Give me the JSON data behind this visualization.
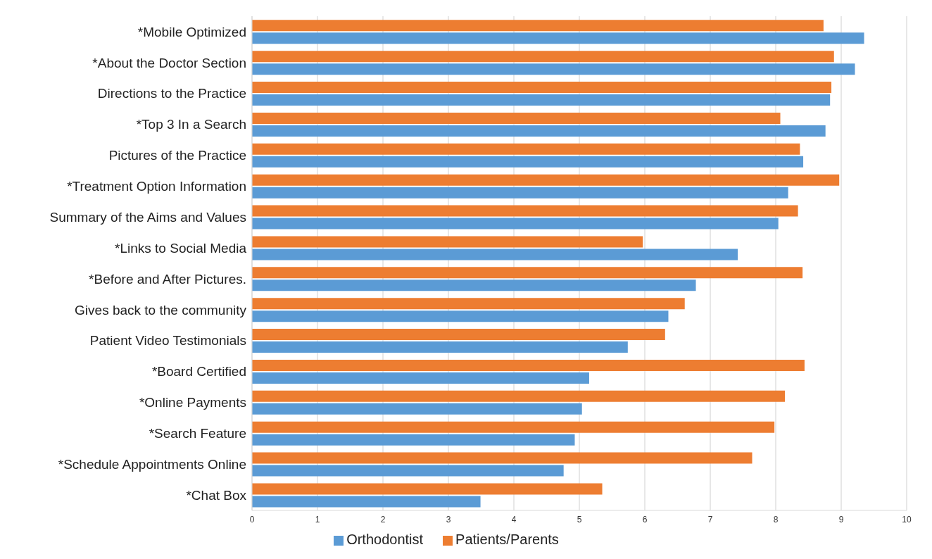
{
  "chart_data": {
    "type": "bar",
    "orientation": "horizontal",
    "categories": [
      "*Mobile Optimized",
      "*About the Doctor Section",
      "Directions to the Practice",
      "*Top 3 In a Search",
      "Pictures of the Practice",
      "*Treatment Option Information",
      "Summary of the Aims and Values",
      "*Links to Social Media",
      "*Before and After Pictures.",
      "Gives back to the community",
      "Patient Video Testimonials",
      "*Board Certified",
      "*Online Payments",
      "*Search Feature",
      "*Schedule Appointments Online",
      "*Chat Box"
    ],
    "series": [
      {
        "name": "Patients/Parents",
        "color": "#ed7d31",
        "values": [
          8.73,
          8.89,
          8.85,
          8.07,
          8.37,
          8.97,
          8.34,
          5.97,
          8.41,
          6.61,
          6.31,
          8.44,
          8.14,
          7.98,
          7.64,
          5.35
        ]
      },
      {
        "name": "Orthodontist",
        "color": "#5b9bd5",
        "values": [
          9.35,
          9.21,
          8.83,
          8.76,
          8.42,
          8.19,
          8.04,
          7.42,
          6.78,
          6.36,
          5.74,
          5.15,
          5.04,
          4.93,
          4.76,
          3.49
        ]
      }
    ],
    "xlim": [
      0,
      10
    ],
    "xticks": [
      0,
      1,
      2,
      3,
      4,
      5,
      6,
      7,
      8,
      9,
      10
    ],
    "grid": "x",
    "legend": "bottom"
  }
}
